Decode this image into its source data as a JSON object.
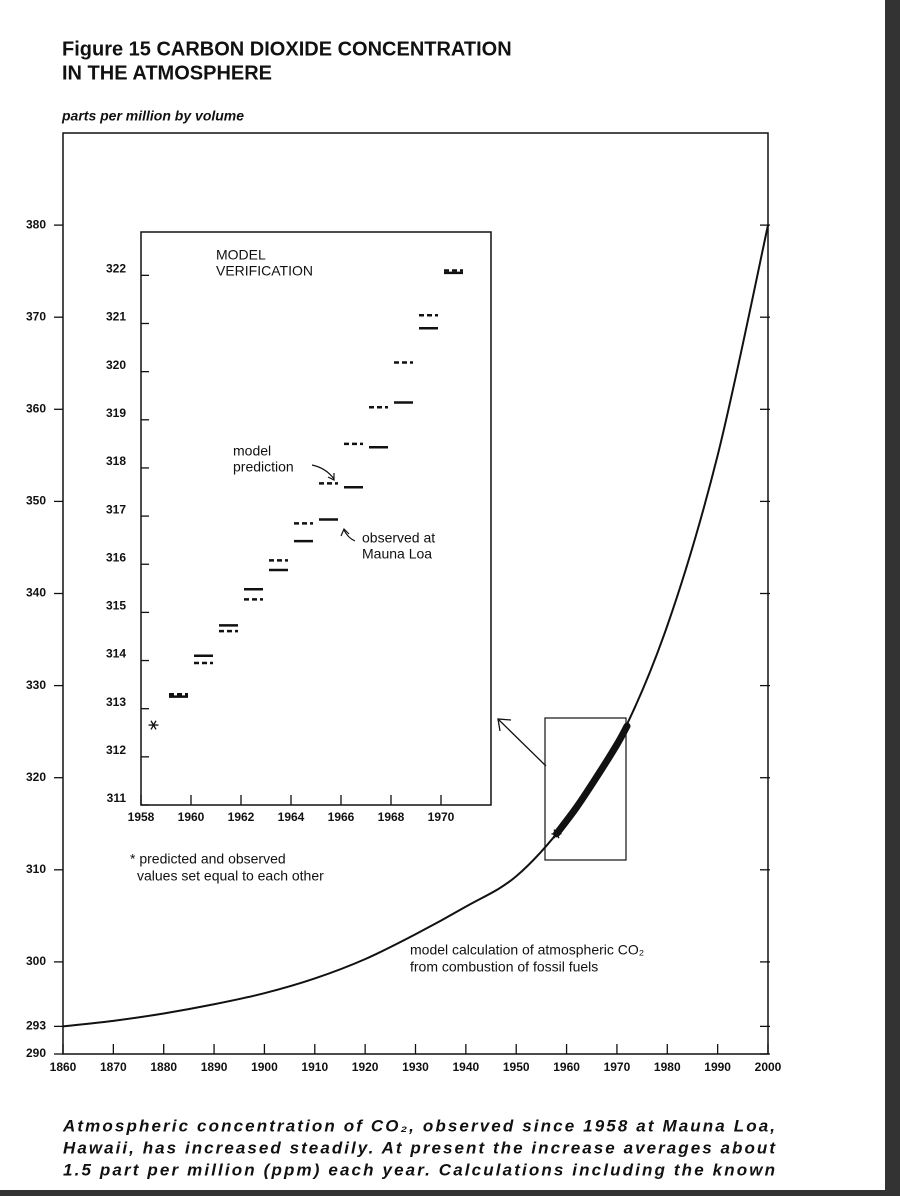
{
  "chart_data": [
    {
      "type": "line",
      "title": [
        "Figure 15 CARBON DIOXIDE CONCENTRATION",
        "IN THE ATMOSPHERE"
      ],
      "y_label": "parts per million by volume",
      "xlim": [
        1860,
        2000
      ],
      "ylim": [
        290,
        390
      ],
      "xticks": [
        1860,
        1870,
        1880,
        1890,
        1900,
        1910,
        1920,
        1930,
        1940,
        1950,
        1960,
        1970,
        1980,
        1990,
        2000
      ],
      "yticks": [
        290,
        293,
        300,
        310,
        320,
        330,
        340,
        350,
        360,
        370,
        380
      ],
      "series": [
        {
          "color": "#111",
          "width": 2,
          "x": [
            1860,
            1870,
            1880,
            1890,
            1900,
            1910,
            1920,
            1930,
            1940,
            1950,
            1960,
            1970,
            1980,
            1990,
            2000
          ],
          "values": [
            293,
            293.6,
            294.4,
            295.4,
            296.6,
            298.2,
            300.3,
            303,
            306,
            309.3,
            315.3,
            323.6,
            336.5,
            355,
            380
          ]
        },
        {
          "color": "#111",
          "width": 7,
          "x": [
            1958,
            1962,
            1966,
            1970,
            1972
          ],
          "values": [
            313.9,
            316.8,
            320.1,
            323.6,
            325.6
          ]
        }
      ],
      "star": {
        "x": 1958,
        "value": 313.9
      },
      "annotation": [
        "model calculation of atmospheric CO₂",
        "from combustion of fossil fuels"
      ]
    },
    {
      "type": "segment",
      "title": [
        "MODEL",
        "VERIFICATION"
      ],
      "xlim": [
        1958,
        1972
      ],
      "ylim": [
        311,
        322.9
      ],
      "xticks": [
        1958,
        1960,
        1962,
        1964,
        1966,
        1968,
        1970
      ],
      "yticks": [
        311,
        312,
        313,
        314,
        315,
        316,
        317,
        318,
        319,
        320,
        321,
        322
      ],
      "series": [
        {
          "color": "#111",
          "dash": true,
          "x": [
            1959,
            1960,
            1961,
            1962,
            1963,
            1964,
            1965,
            1966,
            1967,
            1968,
            1969,
            1970
          ],
          "values": [
            313.3,
            313.95,
            314.61,
            315.27,
            316.08,
            316.85,
            317.68,
            318.5,
            319.26,
            320.19,
            321.17,
            322.1
          ]
        },
        {
          "color": "#111",
          "dash": false,
          "x": [
            1959,
            1960,
            1961,
            1962,
            1963,
            1964,
            1965,
            1966,
            1967,
            1968,
            1969,
            1970
          ],
          "values": [
            313.25,
            314.1,
            314.73,
            315.48,
            315.88,
            316.48,
            316.93,
            317.6,
            318.43,
            319.36,
            320.9,
            322.05
          ]
        }
      ],
      "star": {
        "x": 1958,
        "value": 312.66
      },
      "annotations": [
        [
          "model",
          "prediction"
        ],
        [
          "observed at",
          "Mauna Loa"
        ]
      ],
      "footnote": [
        "* predicted and observed",
        "values set equal to each other"
      ]
    }
  ],
  "caption": [
    "Atmospheric concentration of CO₂, observed since 1958 at Mauna Loa,",
    "Hawaii, has increased steadily. At present the increase averages about",
    "1.5 part per million (ppm) each year. Calculations including the known"
  ]
}
